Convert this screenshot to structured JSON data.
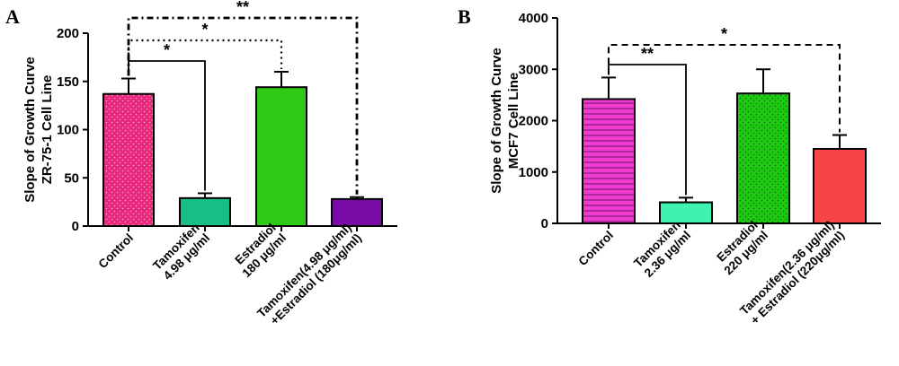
{
  "chart_data": [
    {
      "type": "bar",
      "panel": "A",
      "ylabel": [
        "Slope of Growth Curve",
        "ZR-75-1 Cell Line"
      ],
      "ylim": [
        0,
        200
      ],
      "yticks": [
        0,
        50,
        100,
        150,
        200
      ],
      "categories": [
        [
          "Control"
        ],
        [
          "Tamoxifen",
          "4.98 μg/ml"
        ],
        [
          "Estradiol",
          "180 μg/ml"
        ],
        [
          "Tamoxifen(4.98 μg/ml)",
          "+Estradiol (180μg/ml)"
        ]
      ],
      "values": [
        137,
        29,
        144,
        28
      ],
      "errors": [
        16,
        5,
        16,
        2
      ],
      "colors": [
        "#e8287d",
        "#18be84",
        "#2ec914",
        "#7a0aa6"
      ],
      "patterns": [
        "dots",
        "solid",
        "solid",
        "solid"
      ],
      "significance": [
        {
          "from": 0,
          "to": 1,
          "label": "*",
          "style": "solid"
        },
        {
          "from": 0,
          "to": 2,
          "label": "*",
          "style": "dotted"
        },
        {
          "from": 0,
          "to": 3,
          "label": "**",
          "style": "dashdot"
        }
      ]
    },
    {
      "type": "bar",
      "panel": "B",
      "ylabel": [
        "Slope of Growth Curve",
        "MCF7 Cell Line"
      ],
      "ylim": [
        0,
        4000
      ],
      "yticks": [
        0,
        1000,
        2000,
        3000,
        4000
      ],
      "categories": [
        [
          "Control"
        ],
        [
          "Tamoxifen",
          "2.36 μg/ml"
        ],
        [
          "Estradiol",
          "220 μg/ml"
        ],
        [
          "Tamoxifen(2.36 μg/ml)",
          "+ Estradiol (220μg/ml)"
        ]
      ],
      "values": [
        2420,
        410,
        2530,
        1450
      ],
      "errors": [
        420,
        90,
        470,
        270
      ],
      "colors": [
        "#f03dd0",
        "#3ff2b0",
        "#1ec914",
        "#f54545"
      ],
      "patterns": [
        "hlines",
        "solid",
        "dots",
        "solid"
      ],
      "significance": [
        {
          "from": 0,
          "to": 1,
          "label": "**",
          "style": "solid"
        },
        {
          "from": 0,
          "to": 3,
          "label": "*",
          "style": "dashed"
        }
      ]
    }
  ]
}
